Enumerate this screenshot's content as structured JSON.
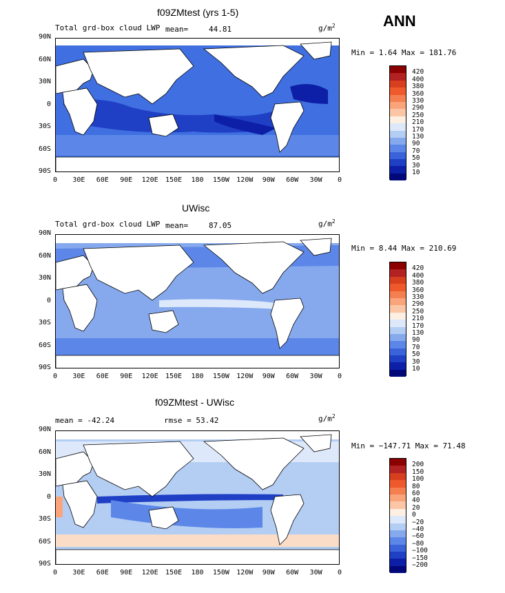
{
  "season": "ANN",
  "units_base": "g/m",
  "units_exp": "2",
  "panels": [
    {
      "title": "f09ZMtest (yrs 1-5)",
      "subtitle": "Total grd-box cloud LWP",
      "mean_label": "mean=",
      "mean": "44.81",
      "minmax": "Min =    1.64 Max = 181.76",
      "levels": [
        "420",
        "400",
        "380",
        "360",
        "330",
        "290",
        "250",
        "210",
        "170",
        "130",
        "90",
        "70",
        "50",
        "30",
        "10"
      ],
      "colors": [
        "#8b0000",
        "#b22222",
        "#d73f1f",
        "#ee5a2b",
        "#f47f50",
        "#f9a47a",
        "#fbc6a6",
        "#fdf0e3",
        "#dde9fa",
        "#b3cdf3",
        "#86a9ee",
        "#5c87e8",
        "#3a62d9",
        "#1f3fc5",
        "#0c1fa6",
        "#02087a"
      ]
    },
    {
      "title": "UWisc",
      "subtitle": "Total grd-box cloud LWP",
      "mean_label": "mean=",
      "mean": "87.05",
      "minmax": "Min =   8.44 Max = 210.69",
      "levels": [
        "420",
        "400",
        "380",
        "360",
        "330",
        "290",
        "250",
        "210",
        "170",
        "130",
        "90",
        "70",
        "50",
        "30",
        "10"
      ],
      "colors": [
        "#8b0000",
        "#b22222",
        "#d73f1f",
        "#ee5a2b",
        "#f47f50",
        "#f9a47a",
        "#fbc6a6",
        "#fdf0e3",
        "#dde9fa",
        "#b3cdf3",
        "#86a9ee",
        "#5c87e8",
        "#3a62d9",
        "#1f3fc5",
        "#0c1fa6",
        "#02087a"
      ]
    },
    {
      "title": "f09ZMtest - UWisc",
      "subtitle": "mean = -42.24",
      "rmse": "rmse =   53.42",
      "minmax": "Min = −147.71 Max =  71.48",
      "levels": [
        "200",
        "150",
        "100",
        "80",
        "60",
        "40",
        "20",
        "0",
        "−20",
        "−40",
        "−60",
        "−80",
        "−100",
        "−150",
        "−200"
      ],
      "colors": [
        "#8b0000",
        "#b22222",
        "#d73f1f",
        "#ee5a2b",
        "#f47f50",
        "#f9a47a",
        "#fbc6a6",
        "#fdf0e3",
        "#dde9fa",
        "#b3cdf3",
        "#86a9ee",
        "#5c87e8",
        "#3a62d9",
        "#1f3fc5",
        "#0c1fa6",
        "#02087a"
      ]
    }
  ],
  "lat_labels": [
    "90N",
    "60N",
    "30N",
    "0",
    "30S",
    "60S",
    "90S"
  ],
  "lon_labels": [
    "0",
    "30E",
    "60E",
    "90E",
    "120E",
    "150E",
    "180",
    "150W",
    "120W",
    "90W",
    "60W",
    "30W",
    "0"
  ],
  "ocean_colors": {
    "p1_bg": "#3f6fe0",
    "p1_dark": "#1f3fc5",
    "p1_darker": "#0c1fa6",
    "p2_bg": "#86a9ee",
    "p2_dark": "#5c87e8",
    "p2_light": "#b3cdf3",
    "p3_bg": "#b3cdf3",
    "p3_dark": "#5c87e8",
    "p3_pale": "#fbdcc7"
  }
}
